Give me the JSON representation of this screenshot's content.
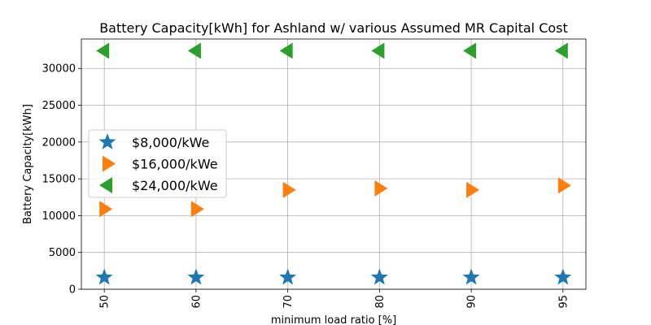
{
  "chart_data": {
    "type": "scatter",
    "title": "Battery Capacity[kWh] for Ashland w/ various Assumed MR Capital Cost",
    "xlabel": "minimum load ratio [%]",
    "ylabel": "Battery Capacity[kWh]",
    "categories": [
      "50",
      "60",
      "70",
      "80",
      "90",
      "95"
    ],
    "ylim": [
      0,
      34000
    ],
    "yticks": [
      0,
      5000,
      10000,
      15000,
      20000,
      25000,
      30000
    ],
    "grid": true,
    "legend_position": "center-left",
    "series": [
      {
        "name": "$8,000/kWe",
        "marker": "star",
        "color": "#1f77b4",
        "values": [
          1600,
          1600,
          1600,
          1600,
          1600,
          1600
        ]
      },
      {
        "name": "$16,000/kWe",
        "marker": "triangle-right",
        "color": "#ff7f0e",
        "values": [
          10900,
          10900,
          13500,
          13700,
          13500,
          14100
        ]
      },
      {
        "name": "$24,000/kWe",
        "marker": "triangle-left",
        "color": "#2ca02c",
        "values": [
          32400,
          32400,
          32400,
          32400,
          32400,
          32400
        ]
      }
    ]
  }
}
